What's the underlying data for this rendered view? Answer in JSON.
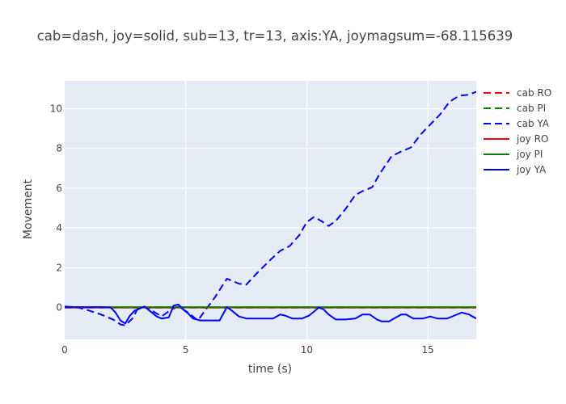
{
  "chart_data": {
    "type": "line",
    "title": "cab=dash, joy=solid, sub=13, tr=13, axis:YA, joymagsum=-68.115639",
    "xlabel": "time (s)",
    "ylabel": "Movement",
    "xlim": [
      0,
      17
    ],
    "ylim": [
      -1.6,
      11.4
    ],
    "x_ticks": [
      0,
      5,
      10,
      15
    ],
    "x_tick_labels": [
      "0",
      "5",
      "10",
      "15"
    ],
    "y_ticks": [
      0,
      2,
      4,
      6,
      8,
      10
    ],
    "y_tick_labels": [
      "0",
      "2",
      "4",
      "6",
      "8",
      "10"
    ],
    "grid": true,
    "legend_position": "right",
    "series": [
      {
        "name": "cab RO",
        "style": "dash",
        "color": "#ff0000",
        "x": [
          0,
          17
        ],
        "y": [
          0,
          0
        ]
      },
      {
        "name": "cab PI",
        "style": "dash",
        "color": "#008000",
        "x": [
          0,
          17
        ],
        "y": [
          0,
          0
        ]
      },
      {
        "name": "cab YA",
        "style": "dash",
        "color": "#0000ff",
        "x": [
          0,
          0.5,
          1,
          1.5,
          2,
          2.3,
          2.5,
          2.8,
          3.0,
          3.3,
          3.6,
          4.0,
          4.4,
          4.7,
          5.1,
          5.5,
          5.8,
          6.2,
          6.7,
          7.2,
          7.5,
          8.0,
          8.5,
          8.9,
          9.3,
          9.7,
          10.0,
          10.3,
          10.6,
          10.9,
          11.2,
          11.6,
          12.0,
          12.3,
          12.7,
          13.0,
          13.5,
          13.9,
          14.3,
          14.7,
          15.1,
          15.5,
          15.9,
          16.3,
          16.7,
          17.0
        ],
        "y": [
          0.05,
          0.02,
          -0.15,
          -0.35,
          -0.6,
          -0.85,
          -0.9,
          -0.55,
          -0.1,
          0.05,
          -0.15,
          -0.45,
          -0.1,
          0.05,
          -0.25,
          -0.65,
          -0.15,
          0.5,
          1.45,
          1.2,
          1.15,
          1.8,
          2.4,
          2.85,
          3.1,
          3.65,
          4.3,
          4.55,
          4.35,
          4.1,
          4.35,
          4.95,
          5.65,
          5.85,
          6.05,
          6.7,
          7.6,
          7.85,
          8.05,
          8.7,
          9.2,
          9.7,
          10.35,
          10.65,
          10.7,
          10.85
        ]
      },
      {
        "name": "joy RO",
        "style": "solid",
        "color": "#ff0000",
        "x": [
          0,
          17
        ],
        "y": [
          0,
          0
        ]
      },
      {
        "name": "joy PI",
        "style": "solid",
        "color": "#008000",
        "x": [
          0,
          17
        ],
        "y": [
          0.02,
          0.02
        ]
      },
      {
        "name": "joy YA",
        "style": "solid",
        "color": "#0000ff",
        "x": [
          0,
          0.5,
          1,
          1.5,
          1.9,
          2.1,
          2.3,
          2.5,
          2.7,
          2.9,
          3.1,
          3.3,
          3.5,
          3.8,
          4.0,
          4.3,
          4.5,
          4.7,
          4.9,
          5.1,
          5.3,
          5.6,
          6.0,
          6.4,
          6.7,
          6.9,
          7.2,
          7.5,
          7.8,
          8.2,
          8.6,
          8.9,
          9.1,
          9.4,
          9.8,
          10.1,
          10.3,
          10.5,
          10.7,
          10.9,
          11.2,
          11.6,
          12.0,
          12.3,
          12.6,
          12.9,
          13.1,
          13.4,
          13.6,
          13.9,
          14.1,
          14.4,
          14.8,
          15.1,
          15.4,
          15.8,
          16.1,
          16.4,
          16.7,
          17.0
        ],
        "y": [
          0.02,
          0.02,
          0.02,
          0.02,
          0.0,
          -0.25,
          -0.65,
          -0.8,
          -0.4,
          -0.15,
          -0.05,
          0.05,
          -0.15,
          -0.45,
          -0.55,
          -0.5,
          0.1,
          0.15,
          -0.1,
          -0.3,
          -0.55,
          -0.65,
          -0.65,
          -0.65,
          0.02,
          -0.15,
          -0.45,
          -0.55,
          -0.55,
          -0.55,
          -0.55,
          -0.35,
          -0.4,
          -0.55,
          -0.55,
          -0.4,
          -0.2,
          0.0,
          -0.1,
          -0.35,
          -0.6,
          -0.6,
          -0.55,
          -0.35,
          -0.35,
          -0.6,
          -0.7,
          -0.7,
          -0.55,
          -0.35,
          -0.35,
          -0.55,
          -0.55,
          -0.45,
          -0.55,
          -0.55,
          -0.4,
          -0.25,
          -0.35,
          -0.55
        ]
      }
    ]
  }
}
